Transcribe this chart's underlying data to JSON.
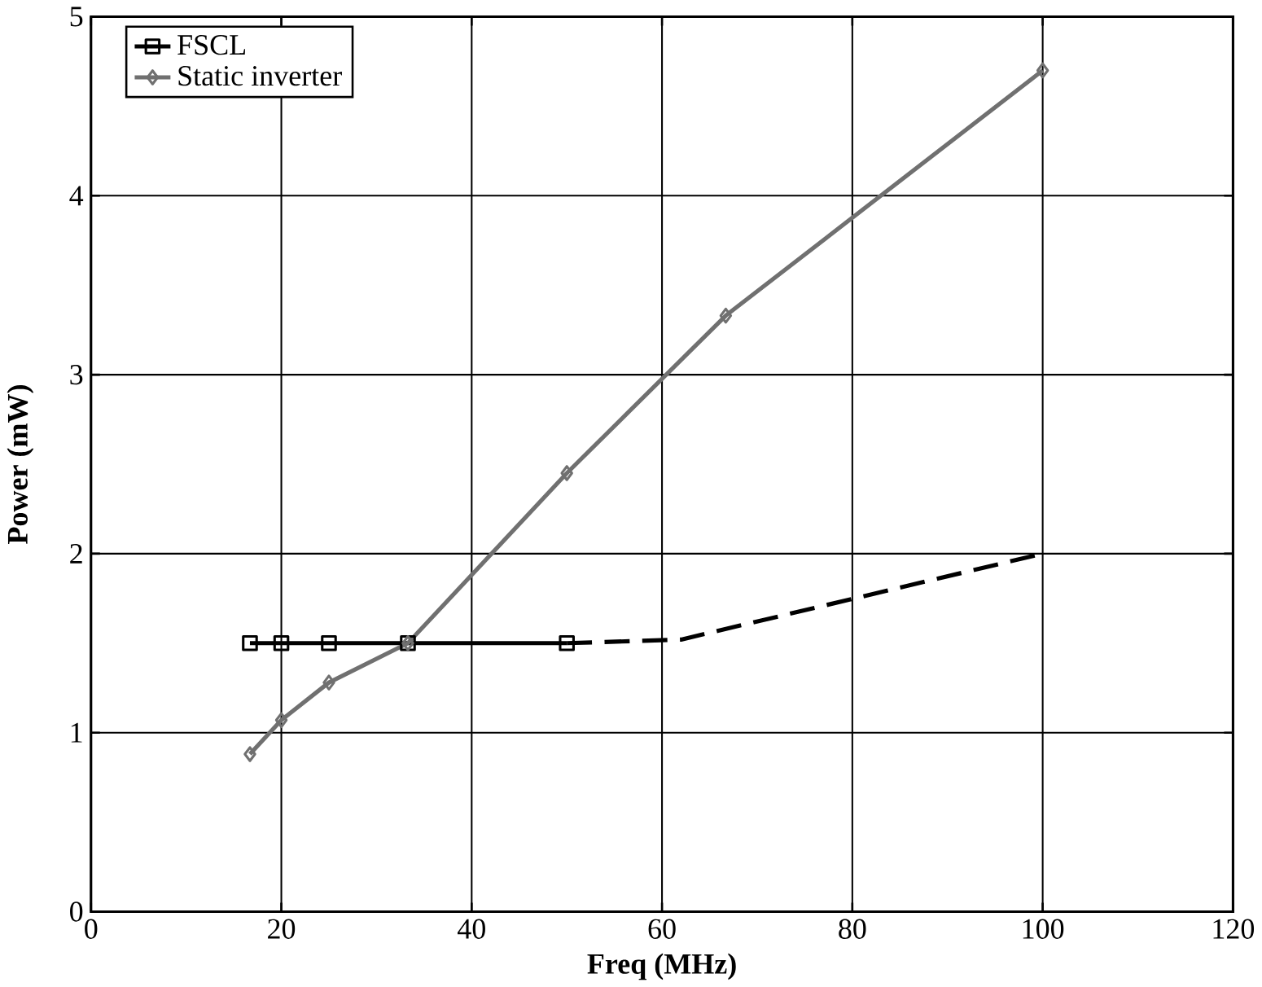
{
  "chart_data": {
    "type": "line",
    "xlabel": "Freq (MHz)",
    "ylabel": "Power  (mW)",
    "xlim": [
      0,
      120
    ],
    "ylim": [
      0,
      5
    ],
    "xticks": [
      0,
      20,
      40,
      60,
      80,
      100,
      120
    ],
    "yticks": [
      0,
      1,
      2,
      3,
      4,
      5
    ],
    "grid": true,
    "legend": "top left",
    "series": [
      {
        "name": "FSCL",
        "color": "#000000",
        "marker": "square",
        "line_style": "solid",
        "x": [
          16.7,
          20,
          25,
          33.3,
          50
        ],
        "values": [
          1.5,
          1.5,
          1.5,
          1.5,
          1.5
        ]
      },
      {
        "name": "Static inverter",
        "color": "#707070",
        "marker": "diamond",
        "line_style": "solid",
        "x": [
          16.7,
          20,
          25,
          33.3,
          50,
          66.7,
          100
        ],
        "values": [
          0.88,
          1.07,
          1.28,
          1.5,
          2.45,
          3.33,
          4.7
        ]
      },
      {
        "color": "#000000",
        "marker": "none",
        "line_style": "dashed",
        "x": [
          50,
          62,
          100
        ],
        "values": [
          1.5,
          1.52,
          2.0
        ]
      }
    ]
  }
}
